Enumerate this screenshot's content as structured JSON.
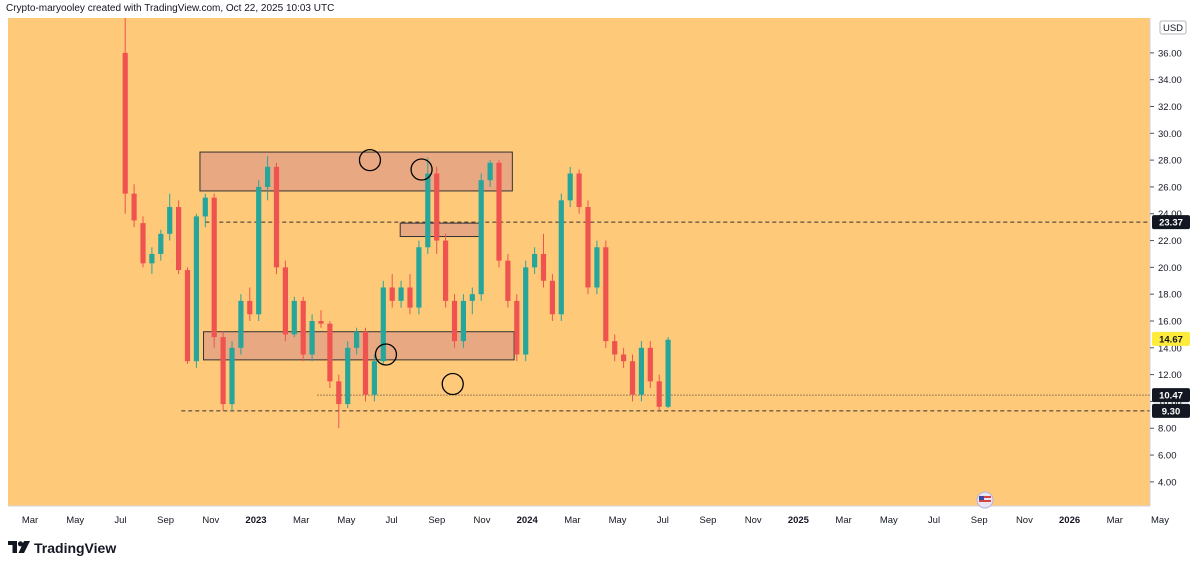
{
  "header": {
    "caption": "Crypto-maryooley created with TradingView.com, Oct 22, 2025 10:03 UTC"
  },
  "footer": {
    "logo_text": "TradingView"
  },
  "colors": {
    "background": "#FFC97A",
    "up": "#26A69A",
    "down": "#EF5350",
    "zone_fill": "#E8A882",
    "zone_stroke": "#333333"
  },
  "chart_data": {
    "type": "candlestick",
    "currency": "USD",
    "ylim": [
      2.2,
      38.6
    ],
    "y_ticks": [
      "36.00",
      "34.00",
      "32.00",
      "30.00",
      "28.00",
      "26.00",
      "24.00",
      "22.00",
      "20.00",
      "18.00",
      "16.00",
      "14.00",
      "12.00",
      "10.00",
      "8.00",
      "6.00",
      "4.00"
    ],
    "x_ticks": [
      {
        "label": "Mar",
        "bold": false
      },
      {
        "label": "May",
        "bold": false
      },
      {
        "label": "Jul",
        "bold": false
      },
      {
        "label": "Sep",
        "bold": false
      },
      {
        "label": "Nov",
        "bold": false
      },
      {
        "label": "2023",
        "bold": true
      },
      {
        "label": "Mar",
        "bold": false
      },
      {
        "label": "May",
        "bold": false
      },
      {
        "label": "Jul",
        "bold": false
      },
      {
        "label": "Sep",
        "bold": false
      },
      {
        "label": "Nov",
        "bold": false
      },
      {
        "label": "2024",
        "bold": true
      },
      {
        "label": "Mar",
        "bold": false
      },
      {
        "label": "May",
        "bold": false
      },
      {
        "label": "Jul",
        "bold": false
      },
      {
        "label": "Sep",
        "bold": false
      },
      {
        "label": "Nov",
        "bold": false
      },
      {
        "label": "2025",
        "bold": true
      },
      {
        "label": "Mar",
        "bold": false
      },
      {
        "label": "May",
        "bold": false
      },
      {
        "label": "Jul",
        "bold": false
      },
      {
        "label": "Sep",
        "bold": false
      },
      {
        "label": "Nov",
        "bold": false
      },
      {
        "label": "2026",
        "bold": true
      },
      {
        "label": "Mar",
        "bold": false
      },
      {
        "label": "May",
        "bold": false
      }
    ],
    "price_labels": [
      {
        "value": 23.37,
        "text": "23.37",
        "style": "dark"
      },
      {
        "value": 14.67,
        "text": "14.67",
        "style": "yellow"
      },
      {
        "value": 10.47,
        "text": "10.47",
        "style": "dark"
      },
      {
        "value": 9.3,
        "text": "9.30",
        "style": "dark"
      }
    ],
    "horizontal_lines": [
      {
        "name": "resistance-line-23-37",
        "y": 23.37,
        "x_start": 7.0,
        "style": "dashed"
      },
      {
        "name": "support-line-9-30",
        "y": 9.3,
        "x_start": 4.3,
        "style": "dashed"
      },
      {
        "name": "level-line-10-47",
        "y": 10.47,
        "x_start": 19.6,
        "style": "dotted"
      }
    ],
    "zones": [
      {
        "name": "upper-resistance-zone",
        "x0": 6.4,
        "x1": 41.5,
        "y_low": 25.7,
        "y_high": 28.6
      },
      {
        "name": "middle-resistance-zone",
        "x0": 28.9,
        "x1": 37.9,
        "y_low": 22.3,
        "y_high": 23.3
      },
      {
        "name": "lower-support-zone",
        "x0": 6.8,
        "x1": 41.7,
        "y_low": 13.1,
        "y_high": 15.2
      }
    ],
    "circles": [
      {
        "name": "top-circle-2024",
        "x": 25.5,
        "y": 28.0
      },
      {
        "name": "top-circle-2025",
        "x": 31.3,
        "y": 27.3
      },
      {
        "name": "bottom-circle-2024",
        "x": 27.3,
        "y": 13.5
      },
      {
        "name": "bottom-circle-2025",
        "x": 34.8,
        "y": 11.3
      }
    ],
    "candles": [
      [
        -2.0,
        36.0,
        38.6,
        24.0,
        25.5
      ],
      [
        -1.0,
        25.5,
        26.2,
        23.0,
        23.5
      ],
      [
        0.0,
        23.3,
        23.8,
        20.0,
        20.3
      ],
      [
        1.0,
        20.3,
        21.5,
        19.5,
        21.0
      ],
      [
        2.0,
        21.0,
        22.8,
        20.5,
        22.5
      ],
      [
        3.0,
        22.5,
        25.5,
        22.0,
        24.5
      ],
      [
        4.0,
        24.5,
        25.0,
        19.5,
        19.8
      ],
      [
        5.0,
        19.8,
        20.0,
        12.8,
        13.0
      ],
      [
        6.0,
        13.0,
        24.0,
        12.5,
        23.8
      ],
      [
        7.0,
        23.8,
        25.5,
        23.0,
        25.2
      ],
      [
        8.0,
        25.2,
        25.5,
        14.0,
        14.8
      ],
      [
        9.0,
        14.8,
        15.2,
        9.3,
        9.8
      ],
      [
        10.0,
        9.8,
        14.5,
        9.3,
        14.0
      ],
      [
        11.0,
        14.0,
        18.0,
        13.5,
        17.5
      ],
      [
        12.0,
        17.5,
        18.5,
        16.0,
        16.5
      ],
      [
        13.0,
        16.5,
        26.5,
        16.0,
        26.0
      ],
      [
        14.0,
        26.0,
        28.3,
        25.0,
        27.5
      ],
      [
        15.0,
        27.5,
        27.8,
        19.5,
        20.0
      ],
      [
        16.0,
        20.0,
        20.5,
        14.5,
        15.0
      ],
      [
        17.0,
        15.0,
        17.8,
        14.8,
        17.5
      ],
      [
        18.0,
        17.5,
        17.8,
        13.0,
        13.5
      ],
      [
        19.0,
        13.5,
        16.5,
        13.0,
        16.0
      ],
      [
        20.0,
        16.0,
        16.8,
        15.5,
        15.8
      ],
      [
        21.0,
        15.8,
        16.0,
        11.0,
        11.5
      ],
      [
        22.0,
        11.5,
        12.0,
        8.0,
        9.8
      ],
      [
        23.0,
        9.8,
        14.5,
        9.5,
        14.0
      ],
      [
        24.0,
        14.0,
        15.5,
        13.5,
        15.2
      ],
      [
        25.0,
        15.2,
        15.5,
        10.0,
        10.5
      ],
      [
        26.0,
        10.5,
        13.5,
        10.0,
        13.0
      ],
      [
        27.0,
        13.0,
        19.0,
        12.8,
        18.5
      ],
      [
        28.0,
        18.5,
        19.5,
        17.0,
        17.5
      ],
      [
        29.0,
        17.5,
        19.0,
        17.0,
        18.5
      ],
      [
        30.0,
        18.5,
        19.5,
        16.5,
        17.0
      ],
      [
        31.0,
        17.0,
        22.0,
        16.5,
        21.5
      ],
      [
        32.0,
        21.5,
        28.2,
        21.0,
        27.0
      ],
      [
        33.0,
        27.0,
        27.5,
        21.0,
        22.0
      ],
      [
        34.0,
        22.0,
        22.5,
        17.0,
        17.5
      ],
      [
        35.0,
        17.5,
        18.0,
        14.0,
        14.5
      ],
      [
        36.0,
        14.5,
        18.0,
        14.0,
        17.5
      ],
      [
        37.0,
        17.5,
        18.5,
        16.5,
        18.0
      ],
      [
        38.0,
        18.0,
        27.0,
        17.5,
        26.5
      ],
      [
        39.0,
        26.5,
        28.0,
        26.0,
        27.8
      ],
      [
        40.0,
        27.8,
        28.0,
        20.0,
        20.5
      ],
      [
        41.0,
        20.5,
        21.0,
        17.0,
        17.5
      ],
      [
        42.0,
        17.5,
        18.0,
        13.0,
        13.5
      ],
      [
        43.0,
        13.5,
        20.5,
        13.0,
        20.0
      ],
      [
        44.0,
        20.0,
        21.5,
        19.5,
        21.0
      ],
      [
        45.0,
        21.0,
        22.5,
        18.5,
        19.0
      ],
      [
        46.0,
        19.0,
        19.5,
        16.0,
        16.5
      ],
      [
        47.0,
        16.5,
        25.5,
        16.0,
        25.0
      ],
      [
        48.0,
        25.0,
        27.5,
        24.5,
        27.0
      ],
      [
        49.0,
        27.0,
        27.3,
        24.0,
        24.5
      ],
      [
        50.0,
        24.5,
        25.0,
        18.0,
        18.5
      ],
      [
        51.0,
        18.5,
        22.0,
        18.0,
        21.5
      ],
      [
        52.0,
        21.5,
        22.0,
        14.0,
        14.5
      ],
      [
        53.0,
        14.5,
        15.0,
        13.0,
        13.5
      ],
      [
        54.0,
        13.5,
        14.0,
        12.5,
        13.0
      ],
      [
        55.0,
        13.0,
        13.5,
        10.0,
        10.5
      ],
      [
        56.0,
        10.5,
        14.5,
        10.0,
        14.0
      ],
      [
        57.0,
        14.0,
        14.5,
        11.0,
        11.5
      ],
      [
        58.0,
        11.5,
        12.0,
        9.3,
        9.6
      ],
      [
        59.0,
        9.6,
        14.8,
        9.5,
        14.6
      ]
    ]
  }
}
